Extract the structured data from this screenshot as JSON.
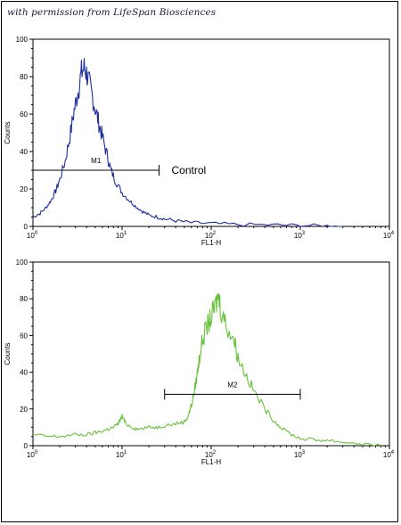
{
  "watermark": "with permission from LifeSpan Biosciences",
  "colors": {
    "control": "#1f2fa0",
    "sample": "#66c23a",
    "axis": "#000000"
  },
  "chart_data": [
    {
      "type": "line",
      "xscale": "log",
      "xlim": [
        1,
        10000
      ],
      "ylim": [
        0,
        100
      ],
      "xlabel": "FL1-H",
      "ylabel": "Counts",
      "yticks": [
        "0",
        "20",
        "40",
        "60",
        "80",
        "100"
      ],
      "xticks": [
        {
          "base": "10",
          "exp": "0"
        },
        {
          "base": "10",
          "exp": "1"
        },
        {
          "base": "10",
          "exp": "2"
        },
        {
          "base": "10",
          "exp": "3"
        },
        {
          "base": "10",
          "exp": "4"
        }
      ],
      "marker": {
        "label": "M1",
        "x_range": [
          1,
          26
        ],
        "y": 30
      },
      "annotation": "Control",
      "series": [
        {
          "color": "#1f2fa0",
          "points": [
            [
              1.0,
              5
            ],
            [
              1.2,
              7
            ],
            [
              1.4,
              10
            ],
            [
              1.6,
              14
            ],
            [
              1.8,
              19
            ],
            [
              2.0,
              25
            ],
            [
              2.3,
              35
            ],
            [
              2.6,
              48
            ],
            [
              2.9,
              62
            ],
            [
              3.2,
              72
            ],
            [
              3.5,
              82
            ],
            [
              3.8,
              85
            ],
            [
              4.1,
              80
            ],
            [
              4.5,
              72
            ],
            [
              5.0,
              63
            ],
            [
              5.5,
              55
            ],
            [
              6.0,
              48
            ],
            [
              6.8,
              38
            ],
            [
              7.5,
              30
            ],
            [
              8.5,
              24
            ],
            [
              10,
              18
            ],
            [
              12,
              14
            ],
            [
              14,
              11
            ],
            [
              17,
              8
            ],
            [
              20,
              6
            ],
            [
              25,
              5
            ],
            [
              30,
              4
            ],
            [
              40,
              3
            ],
            [
              60,
              2
            ],
            [
              100,
              1.5
            ],
            [
              200,
              1
            ],
            [
              500,
              0.8
            ],
            [
              1000,
              0.5
            ],
            [
              2000,
              0.3
            ],
            [
              3000,
              0
            ]
          ]
        }
      ]
    },
    {
      "type": "line",
      "xscale": "log",
      "xlim": [
        1,
        10000
      ],
      "ylim": [
        0,
        100
      ],
      "xlabel": "FL1-H",
      "ylabel": "Counts",
      "yticks": [
        "0",
        "20",
        "40",
        "60",
        "80",
        "100"
      ],
      "xticks": [
        {
          "base": "10",
          "exp": "0"
        },
        {
          "base": "10",
          "exp": "1"
        },
        {
          "base": "10",
          "exp": "2"
        },
        {
          "base": "10",
          "exp": "3"
        },
        {
          "base": "10",
          "exp": "4"
        }
      ],
      "marker": {
        "label": "M2",
        "x_range": [
          30,
          1000
        ],
        "y": 28
      },
      "annotation": "",
      "series": [
        {
          "color": "#66c23a",
          "points": [
            [
              1.0,
              6
            ],
            [
              1.5,
              5
            ],
            [
              2,
              5
            ],
            [
              3,
              6
            ],
            [
              4,
              6
            ],
            [
              5,
              7
            ],
            [
              6,
              8
            ],
            [
              7,
              9
            ],
            [
              8,
              10
            ],
            [
              9,
              12
            ],
            [
              10,
              16
            ],
            [
              11,
              12
            ],
            [
              13,
              10
            ],
            [
              15,
              9
            ],
            [
              20,
              10
            ],
            [
              25,
              10
            ],
            [
              30,
              11
            ],
            [
              40,
              12
            ],
            [
              50,
              13
            ],
            [
              55,
              16
            ],
            [
              60,
              22
            ],
            [
              65,
              30
            ],
            [
              70,
              40
            ],
            [
              75,
              50
            ],
            [
              80,
              58
            ],
            [
              90,
              65
            ],
            [
              100,
              70
            ],
            [
              110,
              75
            ],
            [
              120,
              82
            ],
            [
              130,
              73
            ],
            [
              150,
              65
            ],
            [
              180,
              58
            ],
            [
              200,
              48
            ],
            [
              250,
              38
            ],
            [
              300,
              30
            ],
            [
              400,
              20
            ],
            [
              500,
              14
            ],
            [
              600,
              10
            ],
            [
              800,
              6
            ],
            [
              1000,
              4
            ],
            [
              1500,
              3
            ],
            [
              2000,
              3
            ],
            [
              3000,
              2
            ],
            [
              5000,
              1
            ],
            [
              8000,
              0
            ]
          ]
        }
      ]
    }
  ]
}
